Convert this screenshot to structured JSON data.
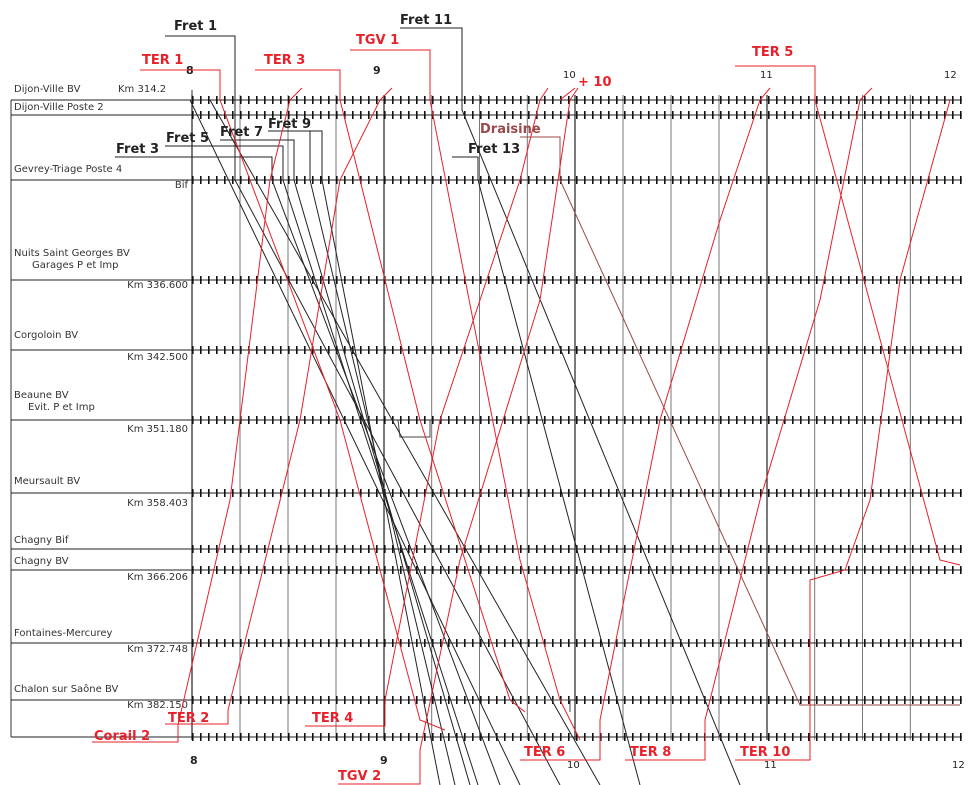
{
  "stations": [
    {
      "id": "dijon-ville-bv",
      "name": "Dijon-Ville BV",
      "km": "Km 314.2",
      "km_inline": true
    },
    {
      "id": "dijon-ville-poste-2",
      "name": "Dijon-Ville Poste 2",
      "km": ""
    },
    {
      "id": "gevrey-triage-poste-4",
      "name": "Gevrey-Triage Poste 4",
      "km": "Bif"
    },
    {
      "id": "nuits-saint-georges-bv",
      "name": "Nuits Saint Georges BV",
      "sub": "Garages P et Imp",
      "km": "Km 336.600"
    },
    {
      "id": "corgoloin-bv",
      "name": "Corgoloin BV",
      "km": "Km 342.500"
    },
    {
      "id": "beaune-bv",
      "name": "Beaune BV",
      "sub": "Evit. P et Imp",
      "km": "Km 351.180"
    },
    {
      "id": "meursault-bv",
      "name": "Meursault BV",
      "km": "Km 358.403"
    },
    {
      "id": "chagny-bif",
      "name": "Chagny Bif",
      "km": ""
    },
    {
      "id": "chagny-bv",
      "name": "Chagny BV",
      "km": "Km 366.206"
    },
    {
      "id": "fontaines-mercurey",
      "name": "Fontaines-Mercurey",
      "km": "Km 372.748"
    },
    {
      "id": "chalon-sur-saone-bv",
      "name": "Chalon sur Saône BV",
      "km": "Km 382.150"
    },
    {
      "id": "bottom-line",
      "name": "",
      "km": ""
    }
  ],
  "hours": [
    "8",
    "9",
    "10",
    "11",
    "12"
  ],
  "trains": [
    {
      "id": "fret-1",
      "label": "Fret 1",
      "color": "#222222"
    },
    {
      "id": "fret-3",
      "label": "Fret 3",
      "color": "#222222"
    },
    {
      "id": "fret-5",
      "label": "Fret 5",
      "color": "#222222"
    },
    {
      "id": "fret-7",
      "label": "Fret 7",
      "color": "#222222"
    },
    {
      "id": "fret-9",
      "label": "Fret 9",
      "color": "#222222"
    },
    {
      "id": "fret-11",
      "label": "Fret 11",
      "color": "#222222"
    },
    {
      "id": "fret-13",
      "label": "Fret 13",
      "color": "#222222"
    },
    {
      "id": "draisine",
      "label": "Draisine",
      "color": "#9a4a4a"
    },
    {
      "id": "ter-1",
      "label": "TER 1",
      "color": "#e8202a"
    },
    {
      "id": "ter-3",
      "label": "TER  3",
      "color": "#e8202a"
    },
    {
      "id": "ter-5",
      "label": "TER  5",
      "color": "#e8202a"
    },
    {
      "id": "tgv-1",
      "label": "TGV 1",
      "color": "#e8202a"
    },
    {
      "id": "plus-10",
      "label": "+ 10",
      "color": "#e8202a"
    },
    {
      "id": "ter-2",
      "label": "TER 2",
      "color": "#e8202a"
    },
    {
      "id": "corail-2",
      "label": "Corail 2",
      "color": "#e8202a"
    },
    {
      "id": "ter-4",
      "label": "TER 4",
      "color": "#e8202a"
    },
    {
      "id": "tgv-2",
      "label": "TGV 2",
      "color": "#e8202a"
    },
    {
      "id": "ter-6",
      "label": "TER 6",
      "color": "#e8202a"
    },
    {
      "id": "ter-8",
      "label": "TER 8",
      "color": "#e8202a"
    },
    {
      "id": "ter-10",
      "label": "TER 10",
      "color": "#e8202a"
    }
  ],
  "colors": {
    "red": "#e8202a",
    "black": "#222222",
    "grid": "#333333",
    "brown": "#9a4a4a"
  }
}
